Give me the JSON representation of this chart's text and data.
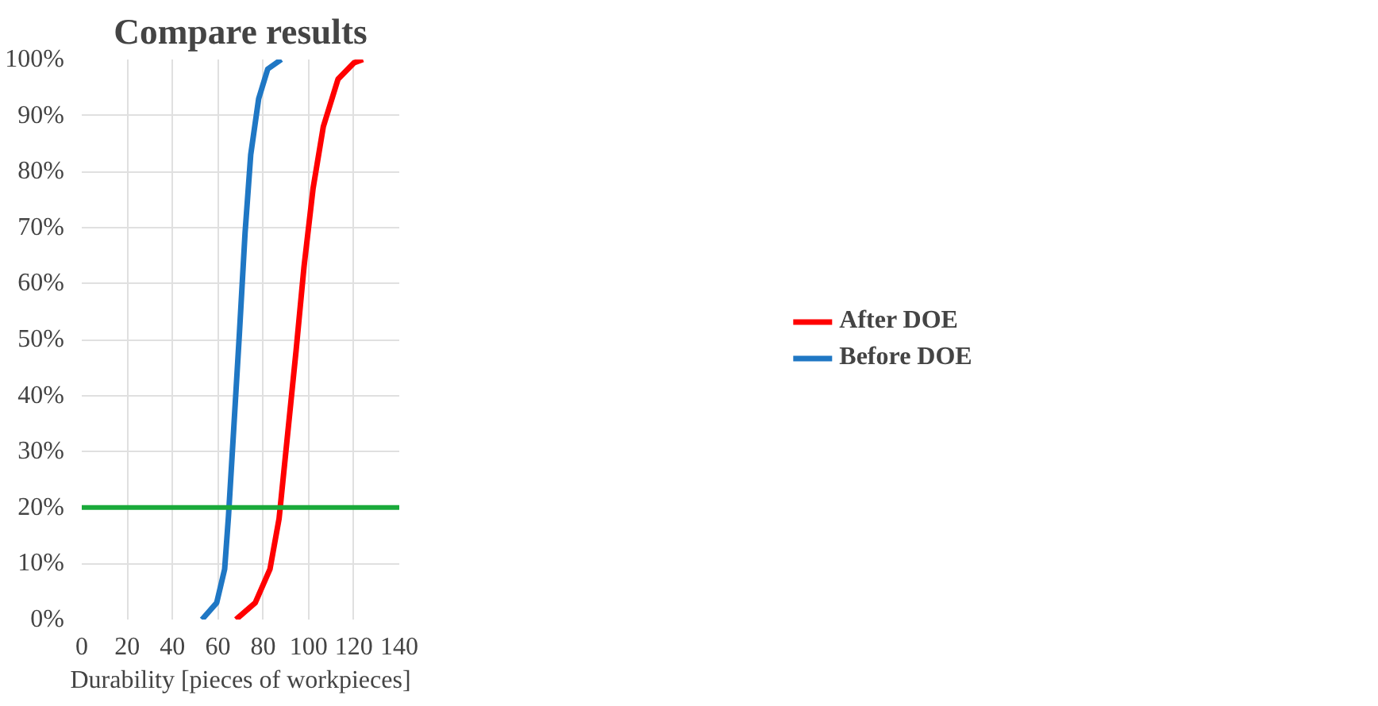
{
  "chart_data": {
    "type": "line",
    "title": "Compare results",
    "xlabel": "Durability [pieces of workpieces]",
    "xlim": [
      0,
      140
    ],
    "xticks": [
      0,
      20,
      40,
      60,
      80,
      100,
      120,
      140
    ],
    "ylim": [
      0,
      100
    ],
    "yticks": [
      {
        "value": 0,
        "label": "0%"
      },
      {
        "value": 10,
        "label": "10%"
      },
      {
        "value": 20,
        "label": "20%"
      },
      {
        "value": 30,
        "label": "30%"
      },
      {
        "value": 40,
        "label": "40%"
      },
      {
        "value": 50,
        "label": "50%"
      },
      {
        "value": 60,
        "label": "60%"
      },
      {
        "value": 70,
        "label": "70%"
      },
      {
        "value": 80,
        "label": "80%"
      },
      {
        "value": 90,
        "label": "90%"
      },
      {
        "value": 100,
        "label": "100%"
      }
    ],
    "grid": true,
    "legend": "right",
    "marker": "none",
    "line_style": "solid",
    "series": [
      {
        "name": "After DOE",
        "color": "#ff0000",
        "x": [
          68,
          76.5,
          83,
          87,
          90.5,
          94.5,
          98,
          102,
          106.5,
          113,
          120,
          124
        ],
        "values": [
          0,
          3,
          9,
          18,
          32,
          48,
          63,
          77,
          88,
          96.5,
          99.4,
          100
        ]
      },
      {
        "name": "Before DOE",
        "color": "#1f77c4",
        "x": [
          53,
          59.5,
          63,
          64.7,
          67,
          69.5,
          72,
          74.5,
          78,
          82,
          88
        ],
        "values": [
          0,
          3,
          9,
          18.5,
          34,
          51,
          69,
          83,
          93,
          98.3,
          100
        ]
      }
    ],
    "ref_lines": [
      {
        "axis": "y",
        "value": 20,
        "color": "#1aaa3a",
        "line_style": "solid"
      }
    ]
  }
}
